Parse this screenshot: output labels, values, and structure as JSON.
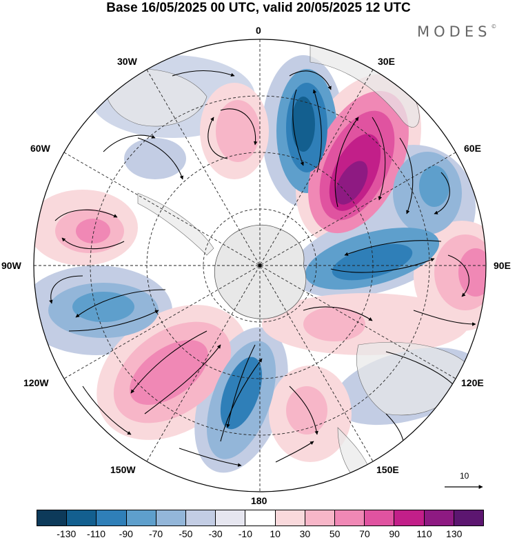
{
  "title": "Base 16/05/2025 00 UTC, valid 20/05/2025 12 UTC",
  "brand": "MODES",
  "brand_mark": "©",
  "longitude_labels": {
    "lon_0": "0",
    "lon_30e": "30E",
    "lon_60e": "60E",
    "lon_90e": "90E",
    "lon_120e": "120E",
    "lon_150e": "150E",
    "lon_180": "180",
    "lon_150w": "150W",
    "lon_120w": "120W",
    "lon_90w": "90W",
    "lon_60w": "60W",
    "lon_30w": "30W"
  },
  "vector_reference": {
    "value": "10"
  },
  "colorbar": {
    "colors": [
      "#0d3a5a",
      "#135f8f",
      "#2f7fb8",
      "#5e9fcc",
      "#93b6d9",
      "#c3cde4",
      "#e6e6f0",
      "#ffffff",
      "#f9d9dc",
      "#f7b6c8",
      "#f088b5",
      "#e053a0",
      "#c21f89",
      "#8e1a82",
      "#5c1670"
    ],
    "tick_labels": [
      "-130",
      "-110",
      "-90",
      "-70",
      "-50",
      "-30",
      "-10",
      "10",
      "30",
      "50",
      "70",
      "90",
      "110",
      "130"
    ]
  },
  "map_colors": {
    "strong_negative": "#135f8f",
    "negative": "#5e9fcc",
    "weak_negative": "#c3cde4",
    "weak_positive": "#f9d9dc",
    "positive": "#f088b5",
    "strong_positive": "#8e1a82",
    "land": "#e8e8e8"
  }
}
